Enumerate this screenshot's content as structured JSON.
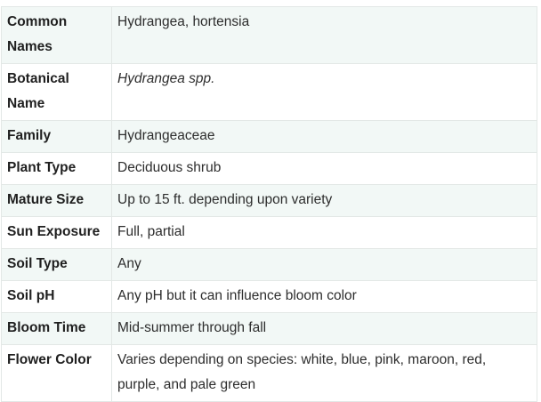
{
  "rows": [
    {
      "label": "Common Names",
      "value": "Hydrangea, hortensia",
      "italic": false
    },
    {
      "label": "Botanical Name",
      "value": "Hydrangea spp.",
      "italic": true
    },
    {
      "label": "Family",
      "value": "Hydrangeaceae",
      "italic": false
    },
    {
      "label": "Plant Type",
      "value": "Deciduous shrub",
      "italic": false
    },
    {
      "label": "Mature Size",
      "value": "Up to 15 ft. depending upon variety",
      "italic": false
    },
    {
      "label": "Sun Exposure",
      "value": "Full, partial",
      "italic": false
    },
    {
      "label": "Soil Type",
      "value": "Any",
      "italic": false
    },
    {
      "label": "Soil pH",
      "value": "Any pH but it can influence bloom color",
      "italic": false
    },
    {
      "label": "Bloom Time",
      "value": "Mid-summer through fall",
      "italic": false
    },
    {
      "label": "Flower Color",
      "value": "Varies depending on species: white, blue, pink, maroon, red, purple, and pale green",
      "italic": false
    }
  ]
}
